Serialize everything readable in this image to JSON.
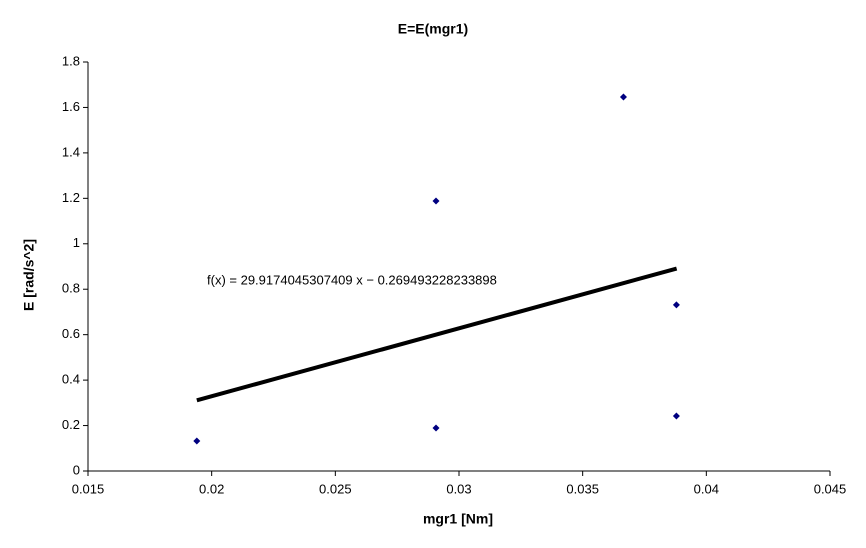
{
  "chart_data": {
    "type": "scatter",
    "title": "E=E(mgr1)",
    "x_label": "mgr1 [Nm]",
    "y_label": "E [rad/s^2]",
    "series": [
      {
        "name": "E",
        "color": "#000080",
        "x": [
          0.0194,
          0.02907,
          0.02907,
          0.03665,
          0.03879,
          0.03879
        ],
        "values": [
          0.132,
          1.188,
          0.189,
          1.646,
          0.731,
          0.242
        ]
      }
    ],
    "trendline": {
      "label": "f(x) = 29.9174045307409 x − 0.269493228233898",
      "color": "#000000",
      "x": [
        0.0194,
        0.0388
      ],
      "values": [
        0.311,
        0.891
      ]
    },
    "xlim": [
      0.015,
      0.045
    ],
    "xticks": [
      0.015,
      0.02,
      0.025,
      0.03,
      0.035,
      0.04,
      0.045
    ],
    "ylim": [
      0,
      1.8
    ],
    "yticks": [
      0,
      0.2,
      0.4,
      0.6,
      0.8,
      1,
      1.2,
      1.4,
      1.6,
      1.8
    ],
    "grid": false
  }
}
